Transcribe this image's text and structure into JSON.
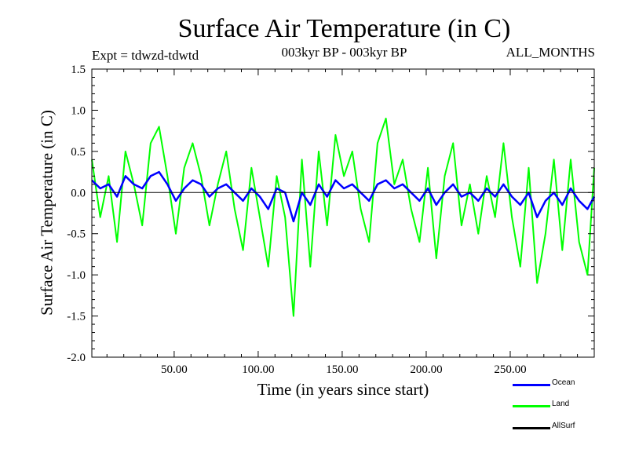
{
  "chart_data": {
    "type": "line",
    "title": "Surface Air Temperature (in C)",
    "subtitle": "003kyr BP - 003kyr BP",
    "experiment_label": "Expt = tdwzd-tdwtd",
    "period_label": "ALL_MONTHS",
    "xlabel": "Time (in years since start)",
    "ylabel": "Surface Air Temperature (in C)",
    "xlim": [
      1,
      300
    ],
    "ylim": [
      -2.0,
      1.5
    ],
    "x_ticks": [
      50,
      100,
      150,
      200,
      250
    ],
    "x_tick_labels": [
      "50.00",
      "100.00",
      "150.00",
      "200.00",
      "250.00"
    ],
    "y_ticks": [
      -2.0,
      -1.5,
      -1.0,
      -0.5,
      0.0,
      0.5,
      1.0,
      1.5
    ],
    "y_tick_labels": [
      "-2.0",
      "-1.5",
      "-1.0",
      "-0.5",
      "0.0",
      "0.5",
      "1.0",
      "1.5"
    ],
    "zero_line": true,
    "grid": false,
    "legend_position": "bottom-right",
    "series": [
      {
        "name": "Ocean",
        "color": "#0000ff",
        "x": [
          1,
          6,
          11,
          16,
          21,
          26,
          31,
          36,
          41,
          46,
          51,
          56,
          61,
          66,
          71,
          76,
          81,
          86,
          91,
          96,
          101,
          106,
          111,
          116,
          121,
          126,
          131,
          136,
          141,
          146,
          151,
          156,
          161,
          166,
          171,
          176,
          181,
          186,
          191,
          196,
          201,
          206,
          211,
          216,
          221,
          226,
          231,
          236,
          241,
          246,
          251,
          256,
          261,
          266,
          271,
          276,
          281,
          286,
          291,
          296,
          300
        ],
        "y": [
          0.15,
          0.05,
          0.1,
          -0.05,
          0.2,
          0.1,
          0.05,
          0.2,
          0.25,
          0.1,
          -0.1,
          0.05,
          0.15,
          0.1,
          -0.05,
          0.05,
          0.1,
          0.0,
          -0.1,
          0.05,
          -0.05,
          -0.2,
          0.05,
          0.0,
          -0.35,
          0.0,
          -0.15,
          0.1,
          -0.05,
          0.15,
          0.05,
          0.1,
          0.0,
          -0.1,
          0.1,
          0.15,
          0.05,
          0.1,
          0.0,
          -0.1,
          0.05,
          -0.15,
          0.0,
          0.1,
          -0.05,
          0.0,
          -0.1,
          0.05,
          -0.05,
          0.1,
          -0.05,
          -0.15,
          0.0,
          -0.3,
          -0.1,
          0.0,
          -0.15,
          0.05,
          -0.1,
          -0.2,
          -0.05
        ]
      },
      {
        "name": "Land",
        "color": "#00ff00",
        "x": [
          1,
          6,
          11,
          16,
          21,
          26,
          31,
          36,
          41,
          46,
          51,
          56,
          61,
          66,
          71,
          76,
          81,
          86,
          91,
          96,
          101,
          106,
          111,
          116,
          121,
          126,
          131,
          136,
          141,
          146,
          151,
          156,
          161,
          166,
          171,
          176,
          181,
          186,
          191,
          196,
          201,
          206,
          211,
          216,
          221,
          226,
          231,
          236,
          241,
          246,
          251,
          256,
          261,
          266,
          271,
          276,
          281,
          286,
          291,
          296,
          300
        ],
        "y": [
          0.4,
          -0.3,
          0.2,
          -0.6,
          0.5,
          0.1,
          -0.4,
          0.6,
          0.8,
          0.2,
          -0.5,
          0.3,
          0.6,
          0.2,
          -0.4,
          0.1,
          0.5,
          -0.2,
          -0.7,
          0.3,
          -0.3,
          -0.9,
          0.2,
          -0.3,
          -1.5,
          0.4,
          -0.9,
          0.5,
          -0.4,
          0.7,
          0.2,
          0.5,
          -0.2,
          -0.6,
          0.6,
          0.9,
          0.1,
          0.4,
          -0.2,
          -0.6,
          0.3,
          -0.8,
          0.2,
          0.6,
          -0.4,
          0.1,
          -0.5,
          0.2,
          -0.3,
          0.6,
          -0.3,
          -0.9,
          0.3,
          -1.1,
          -0.5,
          0.4,
          -0.7,
          0.4,
          -0.6,
          -1.0,
          0.3
        ]
      },
      {
        "name": "AllSurf",
        "color": "#000000",
        "x": [],
        "y": []
      }
    ]
  }
}
